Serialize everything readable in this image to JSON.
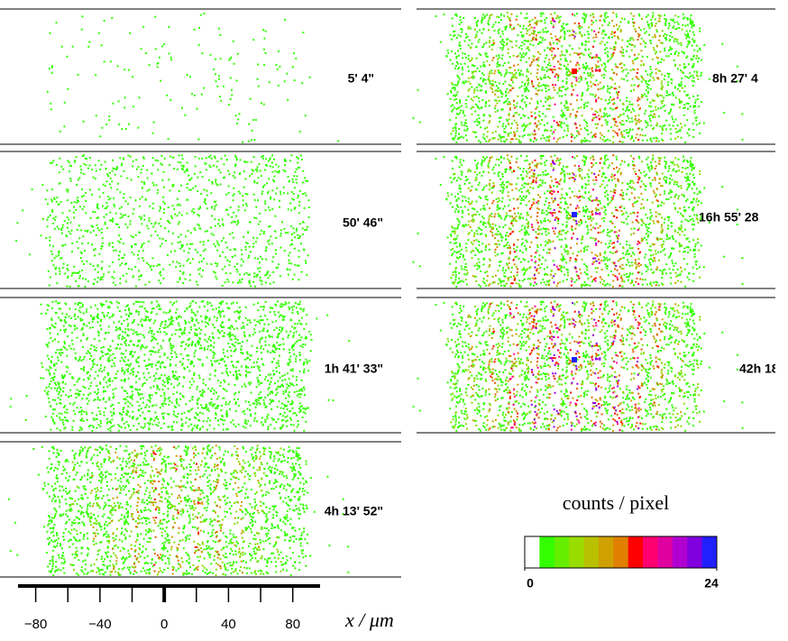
{
  "chart_data": {
    "type": "detector-images",
    "panels": [
      {
        "label": "5' 4\""
      },
      {
        "label": "50' 46\""
      },
      {
        "label": "1h 41' 33\""
      },
      {
        "label": "4h 13' 52\""
      },
      {
        "label": "8h 27' 4"
      },
      {
        "label": "16h 55' 28"
      },
      {
        "label": "42h 18"
      }
    ],
    "xlim": [
      -91,
      97
    ],
    "xticks": [
      {
        "value": -80,
        "label": "−80"
      },
      {
        "value": -40,
        "label": "−40"
      },
      0,
      40,
      80
    ],
    "xminorticks": [
      -60,
      -20,
      20,
      60
    ],
    "xlabel": "x / μm",
    "colorbar": {
      "title": "counts / pixel",
      "clim": [
        0,
        24
      ],
      "ticks": [
        0,
        24
      ],
      "colors": [
        "#ffffff",
        "#33ff00",
        "#66ee00",
        "#99dd00",
        "#b8c000",
        "#d0a000",
        "#e08000",
        "#ff0000",
        "#ff0070",
        "#e000a0",
        "#b000d0",
        "#8000e0",
        "#2020ff"
      ]
    }
  }
}
